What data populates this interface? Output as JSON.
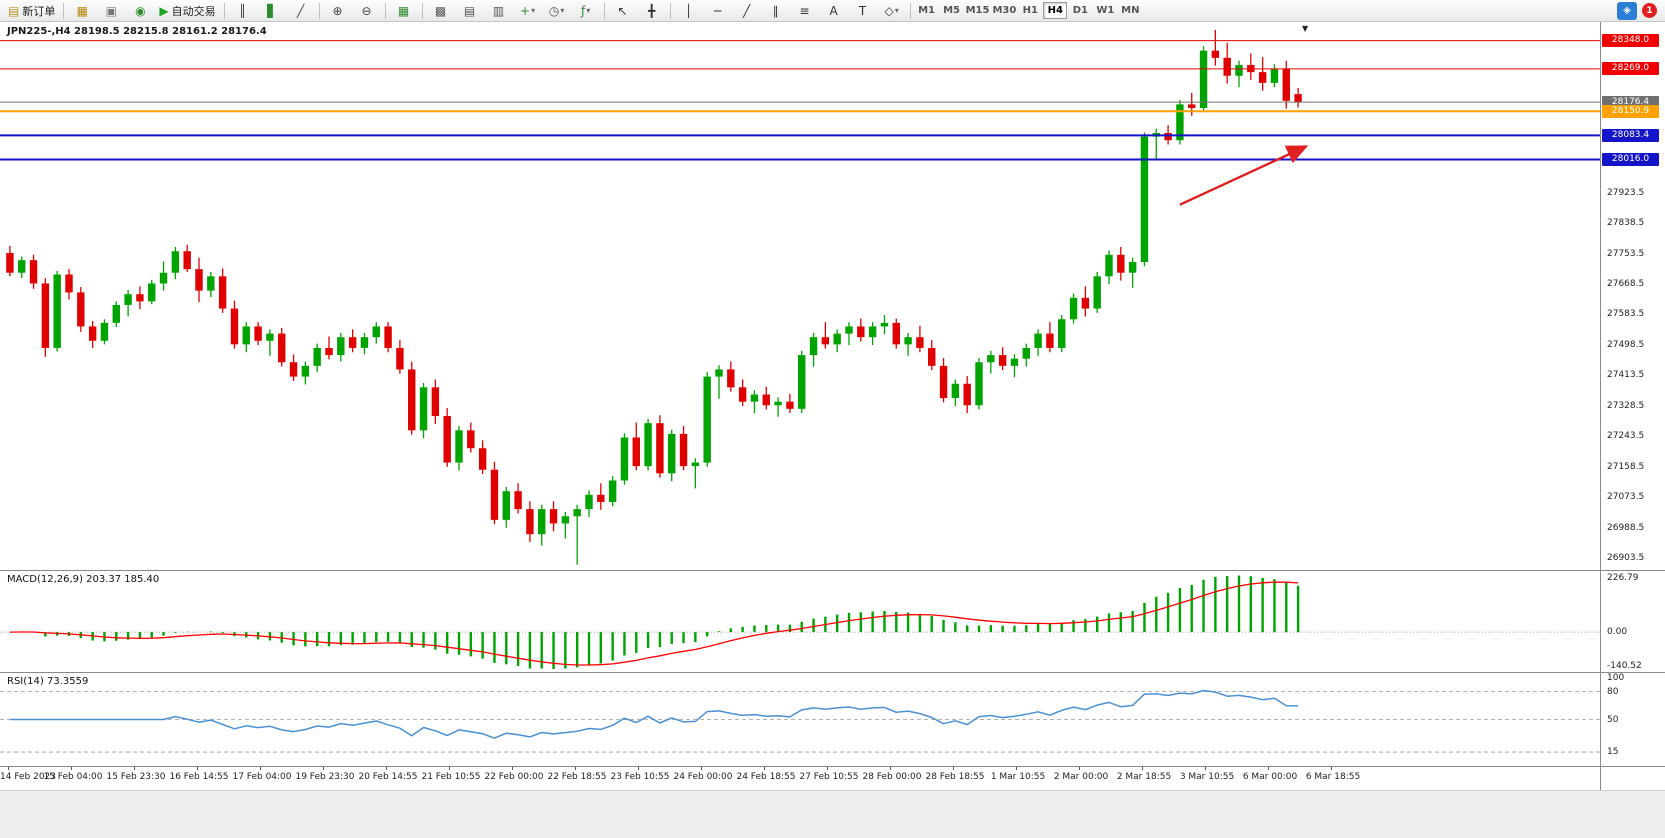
{
  "toolbar": {
    "items": [
      {
        "kind": "button",
        "name": "new-order-button",
        "glyph": "▤",
        "glyph_color": "#b8962e",
        "label": "新订单"
      },
      {
        "kind": "sep"
      },
      {
        "kind": "button",
        "name": "charts-button",
        "glyph": "▦",
        "glyph_color": "#b8860b"
      },
      {
        "kind": "button",
        "name": "profiles-button",
        "glyph": "▣",
        "glyph_color": "#777777"
      },
      {
        "kind": "button",
        "name": "terminal-button",
        "glyph": "◉",
        "glyph_color": "#2e8b2e"
      },
      {
        "kind": "button",
        "name": "auto-trading-button",
        "glyph": "▶",
        "glyph_color": "#1fa51f",
        "label": "自动交易"
      },
      {
        "kind": "sep"
      },
      {
        "kind": "button",
        "name": "ohlc-bars-button",
        "glyph": "║",
        "glyph_color": "#444444"
      },
      {
        "kind": "button",
        "name": "candlestick-button",
        "glyph": "▋",
        "glyph_color": "#2e8b2e"
      },
      {
        "kind": "button",
        "name": "line-chart-button",
        "glyph": "╱",
        "glyph_color": "#444444"
      },
      {
        "kind": "sep"
      },
      {
        "kind": "button",
        "name": "zoom-in-button",
        "glyph": "⊕",
        "glyph_color": "#444444"
      },
      {
        "kind": "button",
        "name": "zoom-out-button",
        "glyph": "⊖",
        "glyph_color": "#444444"
      },
      {
        "kind": "sep"
      },
      {
        "kind": "button",
        "name": "tile-windows-button",
        "glyph": "▦",
        "glyph_color": "#2e8b2e"
      },
      {
        "kind": "sep"
      },
      {
        "kind": "button",
        "name": "cascade-windows-button",
        "glyph": "▩",
        "glyph_color": "#555555"
      },
      {
        "kind": "button",
        "name": "tile-horizontally-button",
        "glyph": "▤",
        "glyph_color": "#555555"
      },
      {
        "kind": "button",
        "name": "tile-vertically-button",
        "glyph": "▥",
        "glyph_color": "#555555"
      },
      {
        "kind": "button",
        "name": "new-chart-button",
        "glyph": "+",
        "glyph_color": "#2e8b2e",
        "dropdown": true
      },
      {
        "kind": "button",
        "name": "periods-button",
        "glyph": "◷",
        "glyph_color": "#555555",
        "dropdown": true
      },
      {
        "kind": "button",
        "name": "indicators-button",
        "glyph": "ƒ",
        "glyph_color": "#2e8b2e",
        "dropdown": true
      },
      {
        "kind": "sep"
      },
      {
        "kind": "button",
        "name": "cursor-button",
        "glyph": "↖",
        "glyph_color": "#333333"
      },
      {
        "kind": "button",
        "name": "crosshair-button",
        "glyph": "╋",
        "glyph_color": "#333333"
      },
      {
        "kind": "sep"
      },
      {
        "kind": "button",
        "name": "vertical-line-button",
        "glyph": "│",
        "glyph_color": "#333333"
      },
      {
        "kind": "button",
        "name": "horizontal-line-button",
        "glyph": "─",
        "glyph_color": "#333333"
      },
      {
        "kind": "button",
        "name": "trendline-button",
        "glyph": "╱",
        "glyph_color": "#333333"
      },
      {
        "kind": "button",
        "name": "channel-button",
        "glyph": "∥",
        "glyph_color": "#333333"
      },
      {
        "kind": "button",
        "name": "fibonacci-button",
        "glyph": "≡",
        "glyph_color": "#333333"
      },
      {
        "kind": "button",
        "name": "text-button",
        "glyph": "A",
        "glyph_color": "#333333"
      },
      {
        "kind": "button",
        "name": "text-label-button",
        "glyph": "T",
        "glyph_color": "#333333"
      },
      {
        "kind": "button",
        "name": "arrows-button",
        "glyph": "◇",
        "glyph_color": "#333333",
        "dropdown": true
      },
      {
        "kind": "sep"
      },
      {
        "kind": "tf",
        "label": "M1"
      },
      {
        "kind": "tf",
        "label": "M5"
      },
      {
        "kind": "tf",
        "label": "M15"
      },
      {
        "kind": "tf",
        "label": "M30"
      },
      {
        "kind": "tf",
        "label": "H1"
      },
      {
        "kind": "tf",
        "label": "H4",
        "active": true
      },
      {
        "kind": "tf",
        "label": "D1"
      },
      {
        "kind": "tf",
        "label": "W1"
      },
      {
        "kind": "tf",
        "label": "MN"
      },
      {
        "kind": "spacer"
      },
      {
        "kind": "button",
        "name": "community-button",
        "glyph": "◈",
        "glyph_color": "#ffffff",
        "bg": "#2a7fd4"
      },
      {
        "kind": "badge",
        "name": "notifications-badge",
        "label": "1"
      }
    ]
  },
  "chart": {
    "title": "JPN225-,H4  28198.5 28215.8 28161.2 28176.4",
    "macd_label": "MACD(12,26,9) 203.37 185.40",
    "rsi_label": "RSI(14) 73.3559"
  },
  "chart_data": {
    "type": "candlestick",
    "symbol": "JPN225-",
    "timeframe": "H4",
    "ohlc_display": {
      "open": "28198.5",
      "high": "28215.8",
      "low": "28161.2",
      "close": "28176.4"
    },
    "price_range": [
      26870,
      28400
    ],
    "up_color": "#00a400",
    "down_color": "#e00000",
    "y_ticks": [
      "27923.5",
      "27838.5",
      "27753.5",
      "27668.5",
      "27583.5",
      "27498.5",
      "27413.5",
      "27328.5",
      "27243.5",
      "27158.5",
      "27073.5",
      "26988.5",
      "26903.5"
    ],
    "levels": [
      {
        "price": 28348.0,
        "label": "28348.0",
        "color": "#f00000",
        "width": 1
      },
      {
        "price": 28269.0,
        "label": "28269.0",
        "color": "#f00000",
        "width": 1
      },
      {
        "price": 28176.4,
        "label": "28176.4",
        "color": "#707070",
        "width": 1
      },
      {
        "price": 28150.9,
        "label": "28150.9",
        "color": "#ffa200",
        "width": 2
      },
      {
        "price": 28083.4,
        "label": "28083.4",
        "color": "#1414c8",
        "width": 2
      },
      {
        "price": 28016.0,
        "label": "28016.0",
        "color": "#1414c8",
        "width": 2
      }
    ],
    "candles": [
      [
        27755,
        27775,
        27690,
        27700
      ],
      [
        27700,
        27745,
        27685,
        27735
      ],
      [
        27735,
        27750,
        27655,
        27670
      ],
      [
        27670,
        27685,
        27465,
        27490
      ],
      [
        27490,
        27705,
        27480,
        27695
      ],
      [
        27695,
        27710,
        27625,
        27645
      ],
      [
        27645,
        27660,
        27535,
        27550
      ],
      [
        27550,
        27565,
        27490,
        27510
      ],
      [
        27510,
        27570,
        27500,
        27560
      ],
      [
        27560,
        27620,
        27548,
        27610
      ],
      [
        27610,
        27652,
        27578,
        27640
      ],
      [
        27640,
        27662,
        27598,
        27620
      ],
      [
        27620,
        27680,
        27612,
        27670
      ],
      [
        27670,
        27732,
        27650,
        27700
      ],
      [
        27700,
        27772,
        27682,
        27760
      ],
      [
        27760,
        27778,
        27702,
        27710
      ],
      [
        27710,
        27742,
        27618,
        27650
      ],
      [
        27650,
        27702,
        27632,
        27690
      ],
      [
        27690,
        27712,
        27588,
        27600
      ],
      [
        27600,
        27622,
        27488,
        27500
      ],
      [
        27500,
        27562,
        27478,
        27550
      ],
      [
        27550,
        27562,
        27498,
        27510
      ],
      [
        27510,
        27542,
        27468,
        27530
      ],
      [
        27530,
        27546,
        27438,
        27450
      ],
      [
        27450,
        27472,
        27398,
        27410
      ],
      [
        27410,
        27452,
        27388,
        27440
      ],
      [
        27440,
        27502,
        27422,
        27490
      ],
      [
        27490,
        27522,
        27458,
        27470
      ],
      [
        27470,
        27532,
        27452,
        27520
      ],
      [
        27520,
        27542,
        27478,
        27490
      ],
      [
        27490,
        27532,
        27472,
        27520
      ],
      [
        27520,
        27562,
        27502,
        27550
      ],
      [
        27550,
        27562,
        27478,
        27490
      ],
      [
        27490,
        27512,
        27418,
        27430
      ],
      [
        27430,
        27452,
        27248,
        27260
      ],
      [
        27260,
        27392,
        27238,
        27380
      ],
      [
        27380,
        27402,
        27278,
        27300
      ],
      [
        27300,
        27322,
        27158,
        27170
      ],
      [
        27170,
        27272,
        27148,
        27260
      ],
      [
        27260,
        27282,
        27198,
        27210
      ],
      [
        27210,
        27232,
        27138,
        27150
      ],
      [
        27150,
        27172,
        26998,
        27010
      ],
      [
        27010,
        27102,
        26988,
        27090
      ],
      [
        27090,
        27112,
        27028,
        27040
      ],
      [
        27040,
        27062,
        26948,
        26970
      ],
      [
        26970,
        27052,
        26938,
        27040
      ],
      [
        27040,
        27062,
        26978,
        27000
      ],
      [
        27000,
        27032,
        26958,
        27020
      ],
      [
        27020,
        27052,
        26885,
        27040
      ],
      [
        27040,
        27092,
        27018,
        27080
      ],
      [
        27080,
        27112,
        27038,
        27060
      ],
      [
        27060,
        27132,
        27048,
        27120
      ],
      [
        27120,
        27252,
        27108,
        27240
      ],
      [
        27240,
        27282,
        27148,
        27160
      ],
      [
        27160,
        27292,
        27148,
        27280
      ],
      [
        27280,
        27302,
        27128,
        27140
      ],
      [
        27140,
        27262,
        27118,
        27250
      ],
      [
        27250,
        27272,
        27148,
        27160
      ],
      [
        27160,
        27182,
        27098,
        27170
      ],
      [
        27170,
        27422,
        27158,
        27410
      ],
      [
        27410,
        27442,
        27348,
        27430
      ],
      [
        27430,
        27452,
        27368,
        27380
      ],
      [
        27380,
        27402,
        27328,
        27340
      ],
      [
        27340,
        27372,
        27308,
        27360
      ],
      [
        27360,
        27382,
        27318,
        27330
      ],
      [
        27330,
        27352,
        27298,
        27340
      ],
      [
        27340,
        27362,
        27308,
        27320
      ],
      [
        27320,
        27482,
        27308,
        27470
      ],
      [
        27470,
        27532,
        27438,
        27520
      ],
      [
        27520,
        27562,
        27488,
        27500
      ],
      [
        27500,
        27542,
        27478,
        27530
      ],
      [
        27530,
        27562,
        27498,
        27550
      ],
      [
        27550,
        27572,
        27508,
        27520
      ],
      [
        27520,
        27562,
        27498,
        27550
      ],
      [
        27550,
        27582,
        27528,
        27560
      ],
      [
        27560,
        27572,
        27488,
        27500
      ],
      [
        27500,
        27532,
        27468,
        27520
      ],
      [
        27520,
        27552,
        27478,
        27490
      ],
      [
        27490,
        27512,
        27428,
        27440
      ],
      [
        27440,
        27462,
        27338,
        27350
      ],
      [
        27350,
        27402,
        27328,
        27390
      ],
      [
        27390,
        27412,
        27308,
        27330
      ],
      [
        27330,
        27462,
        27318,
        27450
      ],
      [
        27450,
        27482,
        27418,
        27470
      ],
      [
        27470,
        27492,
        27428,
        27440
      ],
      [
        27440,
        27472,
        27408,
        27460
      ],
      [
        27460,
        27502,
        27438,
        27490
      ],
      [
        27490,
        27542,
        27468,
        27530
      ],
      [
        27530,
        27562,
        27478,
        27490
      ],
      [
        27490,
        27582,
        27478,
        27570
      ],
      [
        27570,
        27642,
        27558,
        27630
      ],
      [
        27630,
        27662,
        27578,
        27600
      ],
      [
        27600,
        27702,
        27588,
        27690
      ],
      [
        27690,
        27762,
        27668,
        27750
      ],
      [
        27750,
        27772,
        27678,
        27700
      ],
      [
        27700,
        27742,
        27658,
        27730
      ],
      [
        27730,
        28092,
        27718,
        28080
      ],
      [
        28080,
        28102,
        28018,
        28090
      ],
      [
        28090,
        28112,
        28058,
        28070
      ],
      [
        28070,
        28182,
        28058,
        28170
      ],
      [
        28170,
        28202,
        28138,
        28160
      ],
      [
        28160,
        28332,
        28148,
        28320
      ],
      [
        28320,
        28378,
        28278,
        28300
      ],
      [
        28300,
        28342,
        28228,
        28250
      ],
      [
        28250,
        28292,
        28218,
        28280
      ],
      [
        28280,
        28312,
        28238,
        28260
      ],
      [
        28260,
        28302,
        28208,
        28230
      ],
      [
        28230,
        28282,
        28218,
        28270
      ],
      [
        28270,
        28292,
        28158,
        28180
      ],
      [
        28198.5,
        28215.8,
        28161.2,
        28176.4
      ]
    ],
    "time_labels": [
      "14 Feb 2023",
      "15 Feb 04:00",
      "15 Feb 23:30",
      "16 Feb 14:55",
      "17 Feb 04:00",
      "19 Feb 23:30",
      "20 Feb 14:55",
      "21 Feb 10:55",
      "22 Feb 00:00",
      "22 Feb 18:55",
      "23 Feb 10:55",
      "24 Feb 00:00",
      "24 Feb 18:55",
      "27 Feb 10:55",
      "28 Feb 00:00",
      "28 Feb 18:55",
      "1 Mar 10:55",
      "2 Mar 00:00",
      "2 Mar 18:55",
      "3 Mar 10:55",
      "6 Mar 00:00",
      "6 Mar 18:55"
    ],
    "macd": {
      "params": [
        12,
        26,
        9
      ],
      "values_display": [
        "203.37",
        "185.40"
      ],
      "axis_labels": [
        "226.79",
        "0.00",
        "-140.52"
      ],
      "histogram_color": "#00a400",
      "signal_color": "#ff0000"
    },
    "rsi": {
      "period": 14,
      "value_display": "73.3559",
      "axis_labels": [
        "100",
        "80",
        "50",
        "15"
      ],
      "levels": [
        80,
        50,
        15
      ],
      "line_color": "#4a90d2"
    },
    "trend_arrow": {
      "from_index": 99,
      "from_price": 27890,
      "to_index": 109.5,
      "to_price": 28050,
      "color": "#e02020"
    }
  }
}
